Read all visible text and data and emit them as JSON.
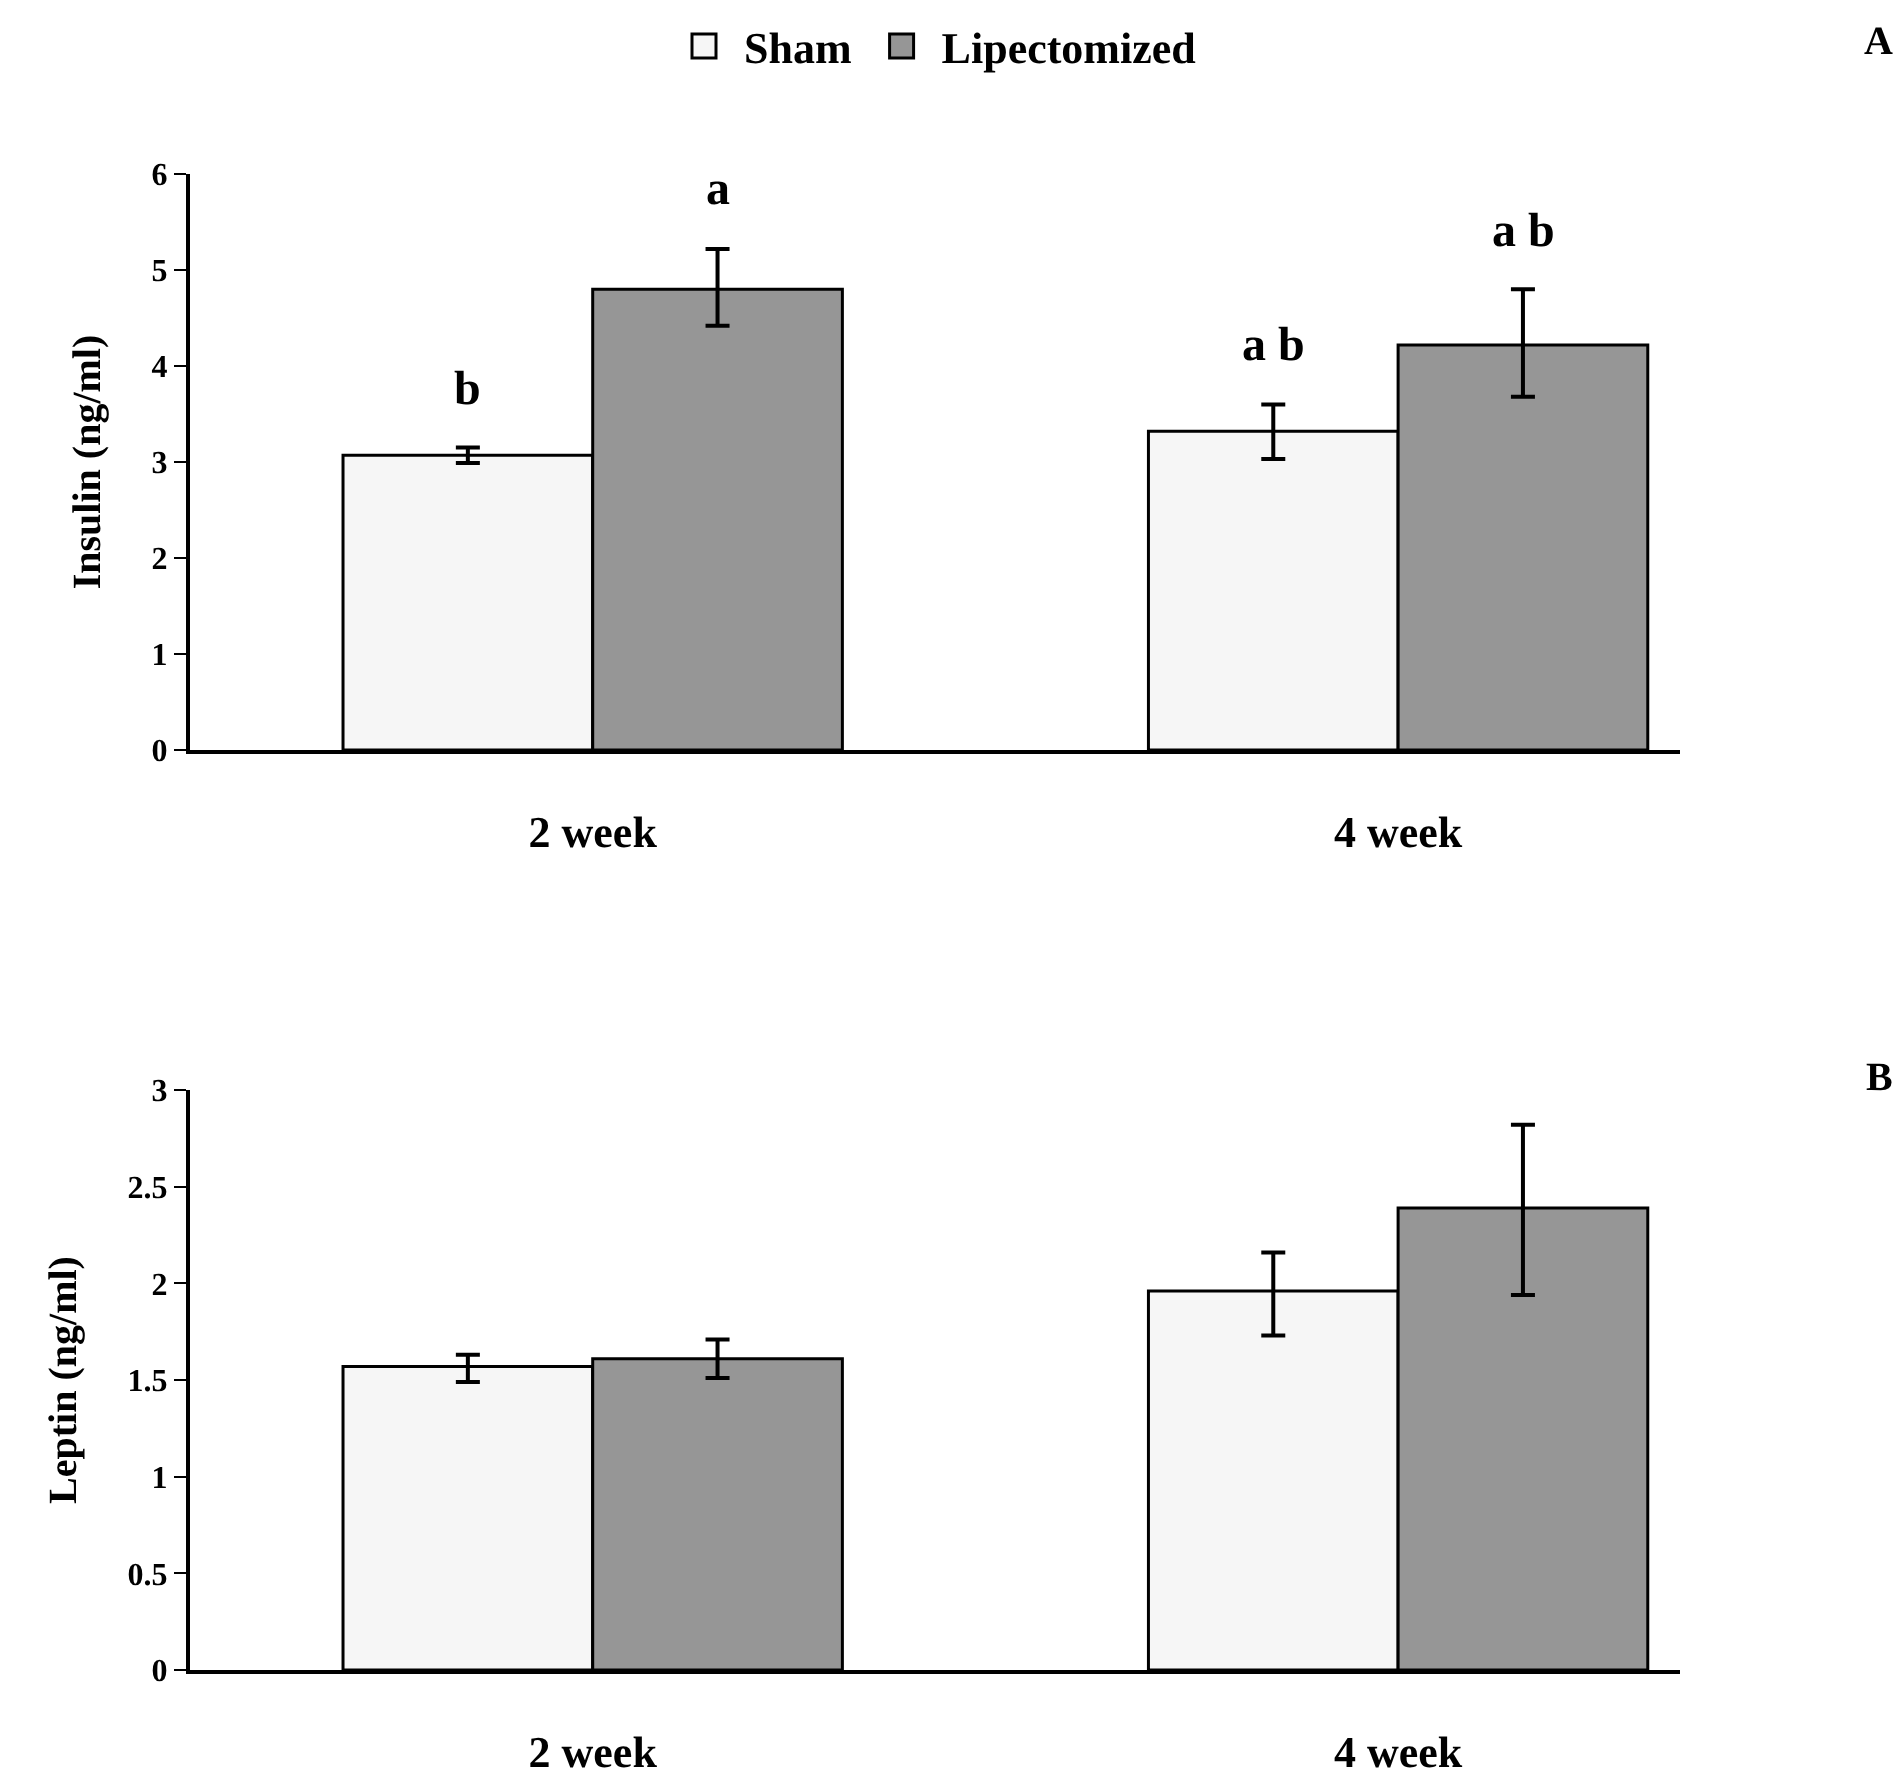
{
  "chart_data": [
    {
      "type": "bar",
      "categories": [
        "2 week",
        "4 week"
      ],
      "ylabel": "Insulin (ng/ml)",
      "ylim": [
        0,
        6
      ],
      "yticks": [
        0,
        1,
        2,
        3,
        4,
        5,
        6
      ],
      "grid": false,
      "legend": "top",
      "annotations": [
        "A",
        "b",
        "a",
        "a b",
        "a b"
      ],
      "series": [
        {
          "name": "Sham",
          "color": "#f6f6f6",
          "values": [
            3.07,
            3.32
          ],
          "errors": [
            [
              2.99,
              3.15
            ],
            [
              3.03,
              3.6
            ]
          ]
        },
        {
          "name": "Lipectomized",
          "color": "#969696",
          "values": [
            4.8,
            4.22
          ],
          "errors": [
            [
              4.42,
              5.22
            ],
            [
              3.68,
              4.8
            ]
          ]
        }
      ]
    },
    {
      "type": "bar",
      "categories": [
        "2 week",
        "4 week"
      ],
      "ylabel": "Leptin (ng/ml)",
      "ylim": [
        0,
        3
      ],
      "yticks": [
        0,
        {
          "value": 0.5,
          "label": "0.5"
        },
        1,
        {
          "value": 1.5,
          "label": "1.5"
        },
        2,
        {
          "value": 2.5,
          "label": "2.5"
        },
        3
      ],
      "grid": false,
      "legend": false,
      "annotations": [
        "B"
      ],
      "series": [
        {
          "color": "#f6f6f6",
          "values": [
            1.57,
            1.96
          ],
          "errors": [
            [
              1.49,
              1.63
            ],
            [
              1.73,
              2.16
            ]
          ]
        },
        {
          "color": "#969696",
          "values": [
            1.61,
            2.39
          ],
          "errors": [
            [
              1.51,
              1.71
            ],
            [
              1.94,
              2.82
            ]
          ]
        }
      ]
    }
  ]
}
